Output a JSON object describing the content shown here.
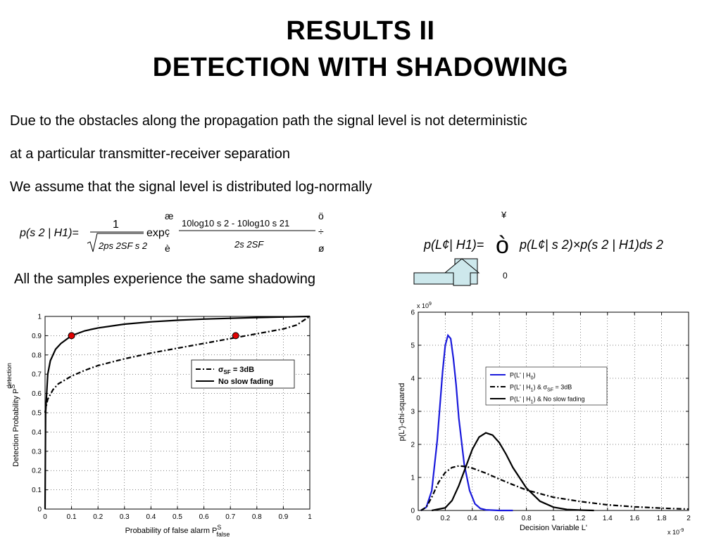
{
  "slide": {
    "title_line1": "RESULTS II",
    "title_line2": "DETECTION WITH SHADOWING",
    "paragraph1": "Due to the obstacles along the propagation path the signal level is not deterministic",
    "paragraph2": "at a particular transmitter-receiver separation",
    "paragraph3": "We assume that the signal level is distributed log-normally",
    "shadowing_note": "All the samples experience the same shadowing"
  },
  "equations": {
    "left": {
      "lhs": "p(s 2 | H1)=",
      "numerator": "1",
      "denominator": "2ps 2SF s 2",
      "exp_label": "exp",
      "exp_numerator": "10log10 s 2 - 10log10 s 21",
      "exp_denominator": "2s 2SF",
      "bracket_top_left": "æ",
      "bracket_left_mid": "ç",
      "bracket_left_bottom": "è",
      "bracket_top_right": "ö",
      "bracket_right_mid": "÷",
      "bracket_right_bottom": "ø"
    },
    "right": {
      "lhs": "p(L¢| H1)=",
      "integral": "ò",
      "upper_limit": "¥",
      "lower_limit": "0",
      "integrand": "p(L¢| s 2)×p(s 2 | H1)ds 2"
    }
  },
  "chart_data": [
    {
      "type": "line",
      "title": "",
      "xlabel": "Probability of false alarm P",
      "xlabel_sup": "S",
      "xlabel_sub": "false",
      "ylabel": "Detection Probability P",
      "ylabel_sup": "S",
      "ylabel_sub": "detection",
      "xlim": [
        0,
        1
      ],
      "ylim": [
        0,
        1
      ],
      "xticks": [
        "0",
        "0.1",
        "0.2",
        "0.3",
        "0.4",
        "0.5",
        "0.6",
        "0.7",
        "0.8",
        "0.9",
        "1"
      ],
      "yticks": [
        "0",
        "0.1",
        "0.2",
        "0.3",
        "0.4",
        "0.5",
        "0.6",
        "0.7",
        "0.8",
        "0.9",
        "1"
      ],
      "grid": true,
      "legend_position": "top-right",
      "series": [
        {
          "name": "σSF = 3dB",
          "style": "dash-dot",
          "x": [
            0,
            0.002,
            0.01,
            0.03,
            0.05,
            0.1,
            0.15,
            0.2,
            0.3,
            0.4,
            0.5,
            0.6,
            0.7,
            0.8,
            0.9,
            0.95,
            1.0
          ],
          "y": [
            0.5,
            0.52,
            0.57,
            0.62,
            0.65,
            0.69,
            0.72,
            0.745,
            0.78,
            0.81,
            0.835,
            0.86,
            0.885,
            0.91,
            0.935,
            0.955,
            1.0
          ]
        },
        {
          "name": "No slow fading",
          "style": "solid",
          "x": [
            0,
            0.002,
            0.01,
            0.02,
            0.04,
            0.06,
            0.1,
            0.15,
            0.2,
            0.3,
            0.4,
            0.5,
            0.6,
            0.7,
            0.8,
            0.9,
            1.0
          ],
          "y": [
            0.0,
            0.5,
            0.7,
            0.77,
            0.83,
            0.86,
            0.9,
            0.925,
            0.94,
            0.96,
            0.972,
            0.98,
            0.986,
            0.99,
            0.994,
            0.997,
            1.0
          ]
        }
      ],
      "markers": [
        {
          "x": 0.1,
          "y": 0.9,
          "color": "#e00000"
        },
        {
          "x": 0.72,
          "y": 0.9,
          "color": "#e00000"
        }
      ],
      "legend": [
        {
          "label": "σ",
          "sub": "SF",
          "rest": " = 3dB"
        },
        {
          "label": "No slow fading",
          "sub": "",
          "rest": ""
        }
      ]
    },
    {
      "type": "line",
      "title": "",
      "xlabel": "Decision Variable L'",
      "ylabel": "p(L')-chi-squared",
      "x_exponent": "x 10",
      "x_exponent_power": "-9",
      "y_exponent": "x 10",
      "y_exponent_power": "9",
      "xlim": [
        0,
        2
      ],
      "ylim": [
        0,
        6
      ],
      "xticks": [
        "0",
        "0.2",
        "0.4",
        "0.6",
        "0.8",
        "1",
        "1.2",
        "1.4",
        "1.6",
        "1.8",
        "2"
      ],
      "yticks": [
        "0",
        "1",
        "2",
        "3",
        "4",
        "5",
        "6"
      ],
      "grid": true,
      "legend_position": "center-right",
      "series": [
        {
          "name": "P(L' | H0)",
          "style": "solid",
          "color": "#1a1adc",
          "x": [
            0.02,
            0.06,
            0.1,
            0.14,
            0.18,
            0.2,
            0.22,
            0.24,
            0.26,
            0.28,
            0.3,
            0.34,
            0.38,
            0.42,
            0.46,
            0.5,
            0.6,
            0.7
          ],
          "y": [
            0.0,
            0.1,
            0.6,
            2.1,
            4.2,
            5.0,
            5.3,
            5.2,
            4.6,
            3.8,
            2.8,
            1.4,
            0.6,
            0.2,
            0.06,
            0.02,
            0.0,
            0.0
          ]
        },
        {
          "name": "P(L' | H1) & σSF = 3dB",
          "style": "dash-dot",
          "color": "#000000",
          "x": [
            0.02,
            0.06,
            0.1,
            0.15,
            0.2,
            0.25,
            0.3,
            0.35,
            0.4,
            0.5,
            0.6,
            0.7,
            0.8,
            1.0,
            1.2,
            1.4,
            1.6,
            1.8,
            2.0
          ],
          "y": [
            0.0,
            0.1,
            0.4,
            0.85,
            1.15,
            1.3,
            1.35,
            1.33,
            1.28,
            1.13,
            0.95,
            0.78,
            0.62,
            0.4,
            0.27,
            0.17,
            0.11,
            0.07,
            0.04
          ]
        },
        {
          "name": "P(L' | H1) & No slow fading",
          "style": "solid",
          "color": "#000000",
          "x": [
            0.1,
            0.2,
            0.25,
            0.3,
            0.35,
            0.4,
            0.45,
            0.5,
            0.55,
            0.6,
            0.65,
            0.7,
            0.8,
            0.9,
            1.0,
            1.1,
            1.2,
            1.3
          ],
          "y": [
            0.0,
            0.08,
            0.3,
            0.75,
            1.3,
            1.85,
            2.22,
            2.35,
            2.28,
            2.05,
            1.7,
            1.3,
            0.68,
            0.28,
            0.1,
            0.03,
            0.01,
            0.0
          ]
        }
      ],
      "legend": [
        {
          "text": "P(L' | H",
          "sub": "0",
          "rest": ")"
        },
        {
          "text": "P(L' | H",
          "sub": "1",
          "rest": ") & σ",
          "sub2": "SF",
          "rest2": " = 3dB"
        },
        {
          "text": "P(L' | H",
          "sub": "1",
          "rest": ") & No slow fading"
        }
      ]
    }
  ]
}
